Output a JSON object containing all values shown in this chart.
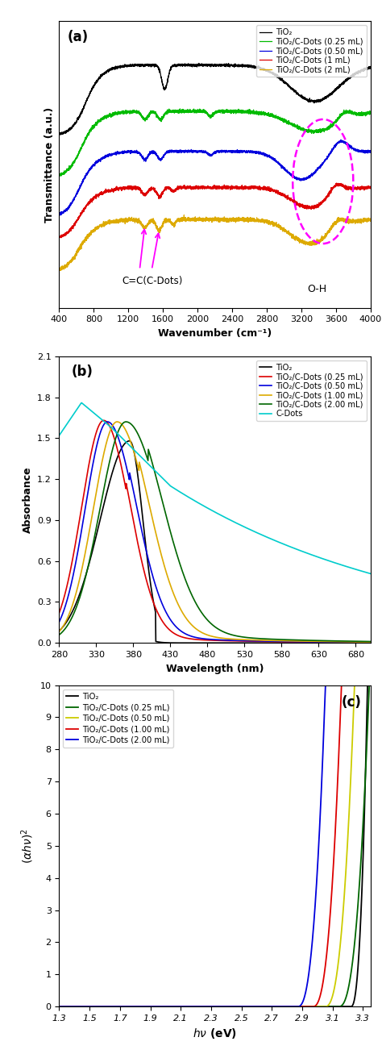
{
  "panel_a": {
    "title": "(a)",
    "xlabel": "Wavenumber (cm⁻¹)",
    "ylabel": "Transmittance (a.u.)",
    "xlim": [
      400,
      4000
    ],
    "xticks": [
      400,
      800,
      1200,
      1600,
      2000,
      2400,
      2800,
      3200,
      3600,
      4000
    ],
    "legend": [
      "TiO₂",
      "TiO₂/C-Dots (0.25 mL)",
      "TiO₂/C-Dots (0.50 mL)",
      "TiO₂/C-Dots (1 mL)",
      "TiO₂/C-Dots (2 mL)"
    ],
    "colors": [
      "black",
      "#00bb00",
      "#0000dd",
      "#dd0000",
      "#ddaa00"
    ],
    "annotation_cc": "C=C(C-Dots)",
    "annotation_oh": "O-H"
  },
  "panel_b": {
    "title": "(b)",
    "xlabel": "Wavelength (nm)",
    "ylabel": "Absorbance",
    "xlim": [
      280,
      700
    ],
    "ylim": [
      0.0,
      2.1
    ],
    "xticks": [
      280,
      330,
      380,
      430,
      480,
      530,
      580,
      630,
      680
    ],
    "yticks": [
      0.0,
      0.3,
      0.6,
      0.9,
      1.2,
      1.5,
      1.8,
      2.1
    ],
    "legend": [
      "TiO₂",
      "TiO₂/C-Dots (0.25 mL)",
      "TiO₂/C-Dots (0.50 mL)",
      "TiO₂/C-Dots (1.00 mL)",
      "TiO₂/C-Dots (2.00 mL)",
      "C-Dots"
    ],
    "colors": [
      "black",
      "#dd0000",
      "#0000dd",
      "#ddaa00",
      "#006600",
      "#00cccc"
    ]
  },
  "panel_c": {
    "title": "(c)",
    "xlim": [
      1.3,
      3.35
    ],
    "ylim": [
      0,
      10
    ],
    "xticks": [
      1.3,
      1.5,
      1.7,
      1.9,
      2.1,
      2.3,
      2.5,
      2.7,
      2.9,
      3.1,
      3.3
    ],
    "yticks": [
      0,
      1,
      2,
      3,
      4,
      5,
      6,
      7,
      8,
      9,
      10
    ],
    "legend": [
      "TiO₂",
      "TiO₂/C-Dots (0.25 mL)",
      "TiO₂/C-Dots (0.50 mL)",
      "TiO₂/C-Dots (1.00 mL)",
      "TiO₂/C-Dots (2.00 mL)"
    ],
    "colors": [
      "black",
      "#006600",
      "#cccc00",
      "#dd0000",
      "#0000dd"
    ],
    "bandgaps": [
      3.22,
      3.14,
      3.05,
      2.97,
      2.87
    ]
  }
}
